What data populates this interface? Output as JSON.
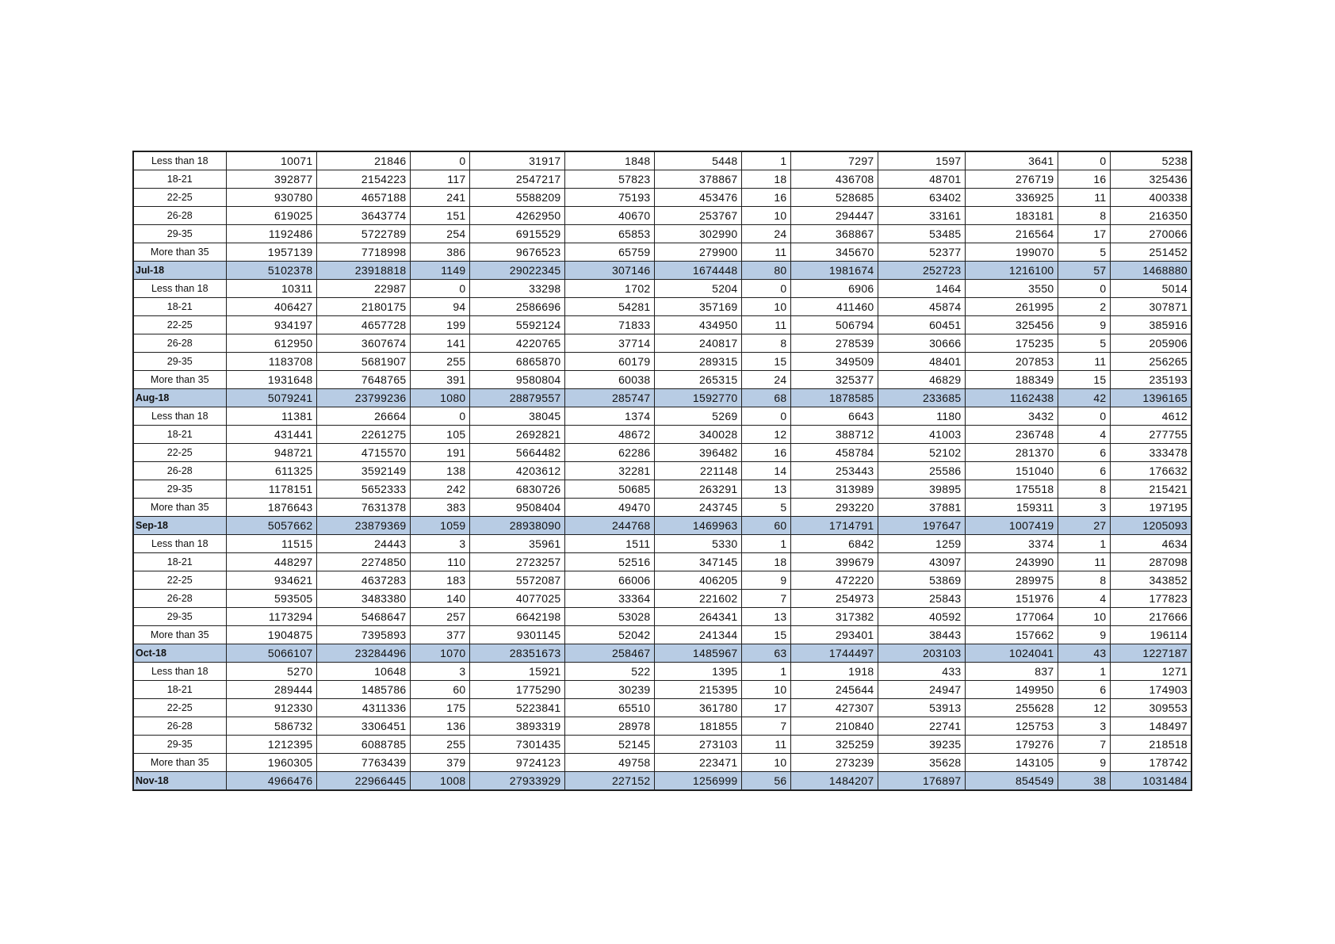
{
  "table": {
    "description": "Monthly age-group data grid with month total rows",
    "months": [
      "Jul-18",
      "Aug-18",
      "Sep-18",
      "Oct-18",
      "Nov-18"
    ],
    "age_groups": [
      "Less than 18",
      "18-21",
      "22-25",
      "26-28",
      "29-35",
      "More than 35"
    ],
    "rows": [
      {
        "label": "Less than 18",
        "type": "age",
        "values": [
          10071,
          21846,
          0,
          31917,
          1848,
          5448,
          1,
          7297,
          1597,
          3641,
          0,
          5238
        ]
      },
      {
        "label": "18-21",
        "type": "age",
        "values": [
          392877,
          2154223,
          117,
          2547217,
          57823,
          378867,
          18,
          436708,
          48701,
          276719,
          16,
          325436
        ]
      },
      {
        "label": "22-25",
        "type": "age",
        "values": [
          930780,
          4657188,
          241,
          5588209,
          75193,
          453476,
          16,
          528685,
          63402,
          336925,
          11,
          400338
        ]
      },
      {
        "label": "26-28",
        "type": "age",
        "values": [
          619025,
          3643774,
          151,
          4262950,
          40670,
          253767,
          10,
          294447,
          33161,
          183181,
          8,
          216350
        ]
      },
      {
        "label": "29-35",
        "type": "age",
        "values": [
          1192486,
          5722789,
          254,
          6915529,
          65853,
          302990,
          24,
          368867,
          53485,
          216564,
          17,
          270066
        ]
      },
      {
        "label": "More than 35",
        "type": "age",
        "values": [
          1957139,
          7718998,
          386,
          9676523,
          65759,
          279900,
          11,
          345670,
          52377,
          199070,
          5,
          251452
        ]
      },
      {
        "label": "Jul-18",
        "type": "total",
        "values": [
          5102378,
          23918818,
          1149,
          29022345,
          307146,
          1674448,
          80,
          1981674,
          252723,
          1216100,
          57,
          1468880
        ]
      },
      {
        "label": "Less than 18",
        "type": "age",
        "values": [
          10311,
          22987,
          0,
          33298,
          1702,
          5204,
          0,
          6906,
          1464,
          3550,
          0,
          5014
        ]
      },
      {
        "label": "18-21",
        "type": "age",
        "values": [
          406427,
          2180175,
          94,
          2586696,
          54281,
          357169,
          10,
          411460,
          45874,
          261995,
          2,
          307871
        ]
      },
      {
        "label": "22-25",
        "type": "age",
        "values": [
          934197,
          4657728,
          199,
          5592124,
          71833,
          434950,
          11,
          506794,
          60451,
          325456,
          9,
          385916
        ]
      },
      {
        "label": "26-28",
        "type": "age",
        "values": [
          612950,
          3607674,
          141,
          4220765,
          37714,
          240817,
          8,
          278539,
          30666,
          175235,
          5,
          205906
        ]
      },
      {
        "label": "29-35",
        "type": "age",
        "values": [
          1183708,
          5681907,
          255,
          6865870,
          60179,
          289315,
          15,
          349509,
          48401,
          207853,
          11,
          256265
        ]
      },
      {
        "label": "More than 35",
        "type": "age",
        "values": [
          1931648,
          7648765,
          391,
          9580804,
          60038,
          265315,
          24,
          325377,
          46829,
          188349,
          15,
          235193
        ]
      },
      {
        "label": "Aug-18",
        "type": "total",
        "values": [
          5079241,
          23799236,
          1080,
          28879557,
          285747,
          1592770,
          68,
          1878585,
          233685,
          1162438,
          42,
          1396165
        ]
      },
      {
        "label": "Less than 18",
        "type": "age",
        "values": [
          11381,
          26664,
          0,
          38045,
          1374,
          5269,
          0,
          6643,
          1180,
          3432,
          0,
          4612
        ]
      },
      {
        "label": "18-21",
        "type": "age",
        "values": [
          431441,
          2261275,
          105,
          2692821,
          48672,
          340028,
          12,
          388712,
          41003,
          236748,
          4,
          277755
        ]
      },
      {
        "label": "22-25",
        "type": "age",
        "values": [
          948721,
          4715570,
          191,
          5664482,
          62286,
          396482,
          16,
          458784,
          52102,
          281370,
          6,
          333478
        ]
      },
      {
        "label": "26-28",
        "type": "age",
        "values": [
          611325,
          3592149,
          138,
          4203612,
          32281,
          221148,
          14,
          253443,
          25586,
          151040,
          6,
          176632
        ]
      },
      {
        "label": "29-35",
        "type": "age",
        "values": [
          1178151,
          5652333,
          242,
          6830726,
          50685,
          263291,
          13,
          313989,
          39895,
          175518,
          8,
          215421
        ]
      },
      {
        "label": "More than 35",
        "type": "age",
        "values": [
          1876643,
          7631378,
          383,
          9508404,
          49470,
          243745,
          5,
          293220,
          37881,
          159311,
          3,
          197195
        ]
      },
      {
        "label": "Sep-18",
        "type": "total",
        "values": [
          5057662,
          23879369,
          1059,
          28938090,
          244768,
          1469963,
          60,
          1714791,
          197647,
          1007419,
          27,
          1205093
        ]
      },
      {
        "label": "Less than 18",
        "type": "age",
        "values": [
          11515,
          24443,
          3,
          35961,
          1511,
          5330,
          1,
          6842,
          1259,
          3374,
          1,
          4634
        ]
      },
      {
        "label": "18-21",
        "type": "age",
        "values": [
          448297,
          2274850,
          110,
          2723257,
          52516,
          347145,
          18,
          399679,
          43097,
          243990,
          11,
          287098
        ]
      },
      {
        "label": "22-25",
        "type": "age",
        "values": [
          934621,
          4637283,
          183,
          5572087,
          66006,
          406205,
          9,
          472220,
          53869,
          289975,
          8,
          343852
        ]
      },
      {
        "label": "26-28",
        "type": "age",
        "values": [
          593505,
          3483380,
          140,
          4077025,
          33364,
          221602,
          7,
          254973,
          25843,
          151976,
          4,
          177823
        ]
      },
      {
        "label": "29-35",
        "type": "age",
        "values": [
          1173294,
          5468647,
          257,
          6642198,
          53028,
          264341,
          13,
          317382,
          40592,
          177064,
          10,
          217666
        ]
      },
      {
        "label": "More than 35",
        "type": "age",
        "values": [
          1904875,
          7395893,
          377,
          9301145,
          52042,
          241344,
          15,
          293401,
          38443,
          157662,
          9,
          196114
        ]
      },
      {
        "label": "Oct-18",
        "type": "total",
        "values": [
          5066107,
          23284496,
          1070,
          28351673,
          258467,
          1485967,
          63,
          1744497,
          203103,
          1024041,
          43,
          1227187
        ]
      },
      {
        "label": "Less than 18",
        "type": "age",
        "values": [
          5270,
          10648,
          3,
          15921,
          522,
          1395,
          1,
          1918,
          433,
          837,
          1,
          1271
        ]
      },
      {
        "label": "18-21",
        "type": "age",
        "values": [
          289444,
          1485786,
          60,
          1775290,
          30239,
          215395,
          10,
          245644,
          24947,
          149950,
          6,
          174903
        ]
      },
      {
        "label": "22-25",
        "type": "age",
        "values": [
          912330,
          4311336,
          175,
          5223841,
          65510,
          361780,
          17,
          427307,
          53913,
          255628,
          12,
          309553
        ]
      },
      {
        "label": "26-28",
        "type": "age",
        "values": [
          586732,
          3306451,
          136,
          3893319,
          28978,
          181855,
          7,
          210840,
          22741,
          125753,
          3,
          148497
        ]
      },
      {
        "label": "29-35",
        "type": "age",
        "values": [
          1212395,
          6088785,
          255,
          7301435,
          52145,
          273103,
          11,
          325259,
          39235,
          179276,
          7,
          218518
        ]
      },
      {
        "label": "More than 35",
        "type": "age",
        "values": [
          1960305,
          7763439,
          379,
          9724123,
          49758,
          223471,
          10,
          273239,
          35628,
          143105,
          9,
          178742
        ]
      },
      {
        "label": "Nov-18",
        "type": "total",
        "values": [
          4966476,
          22966445,
          1008,
          27933929,
          227152,
          1256999,
          56,
          1484207,
          176897,
          854549,
          38,
          1031484
        ]
      }
    ]
  },
  "colors": {
    "total_row_bg": "#b8cce4",
    "grid_border": "#1f1f1f",
    "cell_bg": "#ffffff",
    "text": "#111111"
  }
}
